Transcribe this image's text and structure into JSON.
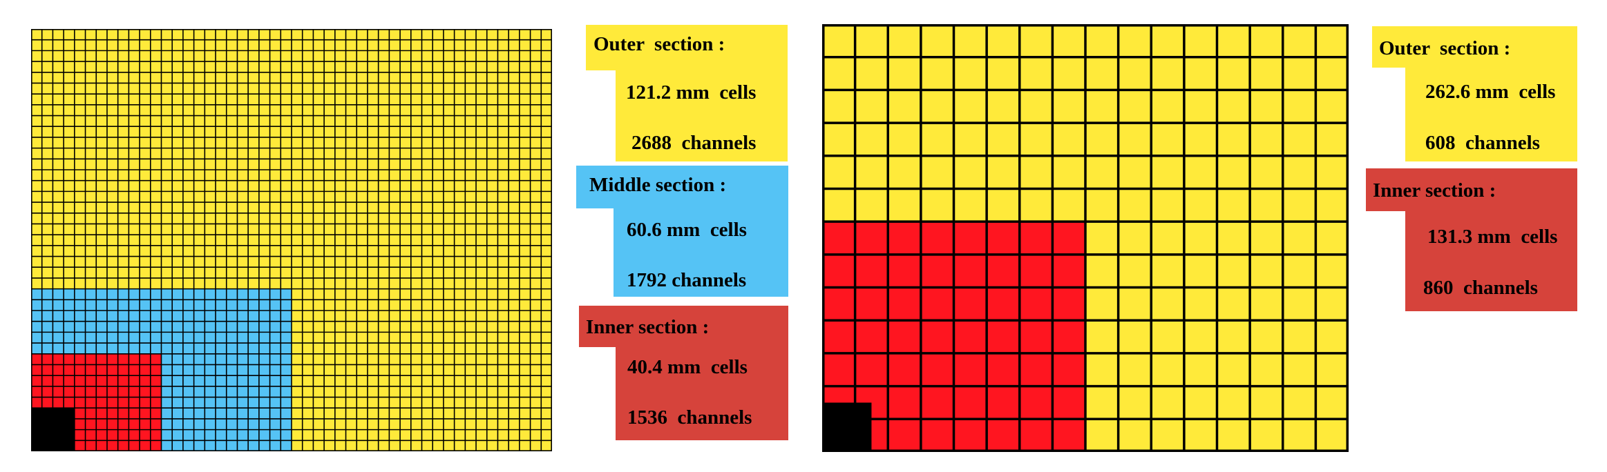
{
  "colors": {
    "outer": "#ffea3a",
    "middle": "#55c3f5",
    "inner_cells": "#ff1520",
    "inner_label": "#d6433b",
    "center": "#000000",
    "grid_line": "#000000"
  },
  "left_panel": {
    "outer": {
      "title": "Outer  section :",
      "cells": "121.2 mm  cells",
      "channels": "2688  channels"
    },
    "middle": {
      "title": "Middle section :",
      "cells": "60.6 mm  cells",
      "channels": "1792 channels"
    },
    "inner": {
      "title": "Inner section :",
      "cells": "40.4 mm  cells",
      "channels": "1536  channels"
    }
  },
  "right_panel": {
    "outer": {
      "title": "Outer  section :",
      "cells": "262.6 mm  cells",
      "channels": "608  channels"
    },
    "inner": {
      "title": "Inner section :",
      "cells": "131.3 mm  cells",
      "channels": "860  channels"
    }
  }
}
